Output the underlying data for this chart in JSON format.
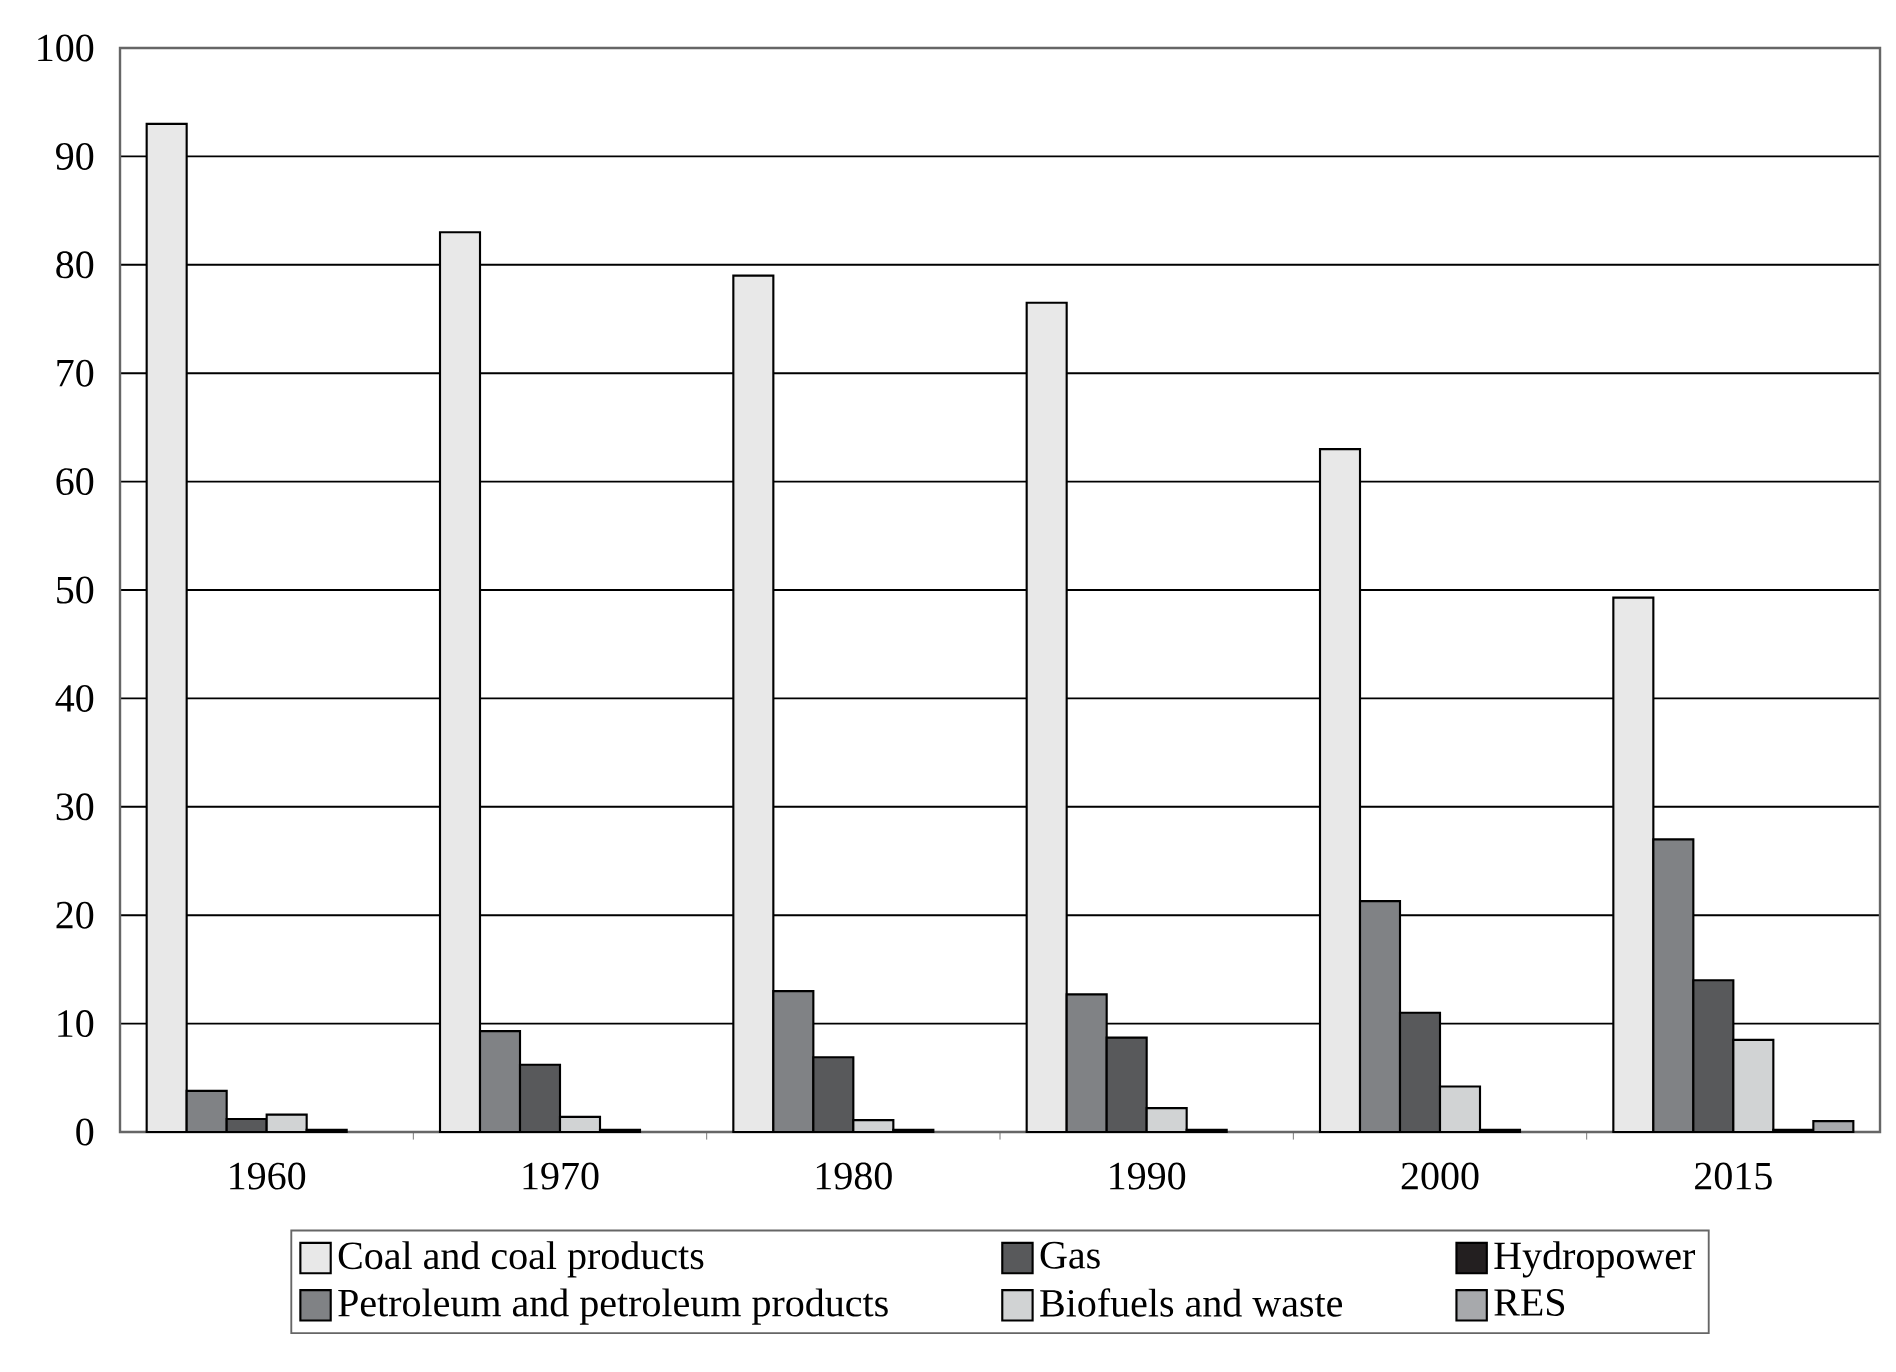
{
  "chart_data": {
    "type": "bar",
    "categories": [
      "1960",
      "1970",
      "1980",
      "1990",
      "2000",
      "2015"
    ],
    "series": [
      {
        "name": "Coal and coal products",
        "color": "#e8e8e8",
        "values": [
          93,
          83,
          79,
          76.5,
          63,
          49.3
        ]
      },
      {
        "name": "Petroleum and petroleum products",
        "color": "#808285",
        "values": [
          3.8,
          9.3,
          13,
          12.7,
          21.3,
          27
        ]
      },
      {
        "name": "Gas",
        "color": "#58595b",
        "values": [
          1.2,
          6.2,
          6.9,
          8.7,
          11,
          14
        ]
      },
      {
        "name": "Biofuels and waste",
        "color": "#d1d3d4",
        "values": [
          1.6,
          1.4,
          1.1,
          2.2,
          4.2,
          8.5
        ]
      },
      {
        "name": "Hydropower",
        "color": "#231f20",
        "values": [
          0.2,
          0.2,
          0.2,
          0.2,
          0.2,
          0.2
        ]
      },
      {
        "name": "RES",
        "color": "#a7a9ac",
        "values": [
          null,
          null,
          null,
          null,
          null,
          1.0
        ]
      }
    ],
    "ylim": [
      0,
      100
    ],
    "yticks": [
      0,
      10,
      20,
      30,
      40,
      50,
      60,
      70,
      80,
      90,
      100
    ],
    "grid": "y",
    "legend": "bottom"
  }
}
